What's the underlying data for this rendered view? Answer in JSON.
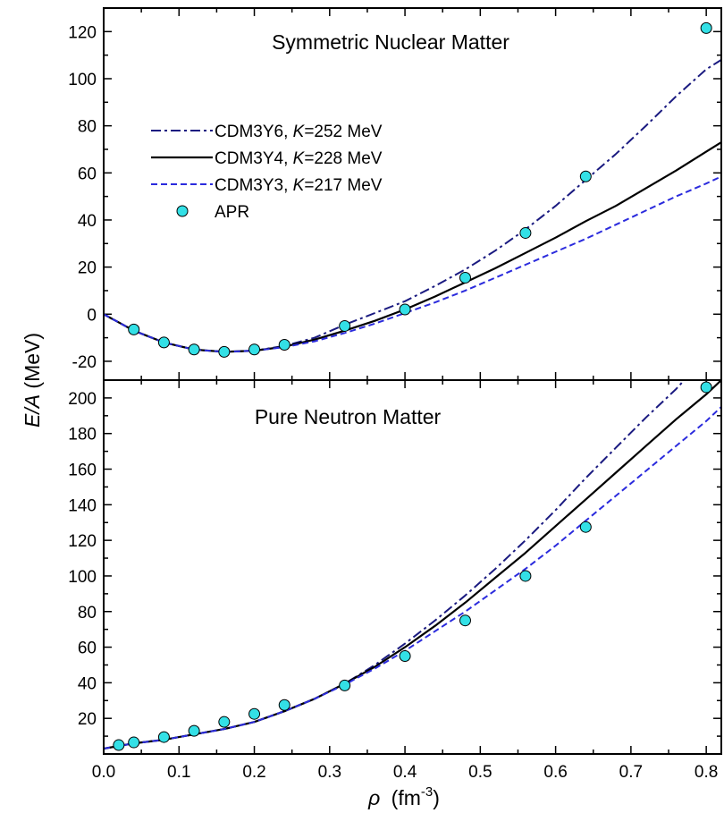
{
  "chart_data": [
    {
      "type": "line",
      "title": "Symmetric Nuclear Matter",
      "xlabel_symbol": "ρ",
      "xlabel_unit": "(fm",
      "xlabel_exp": "-3",
      "xlabel_close": ")",
      "ylabel_italic": "E/A",
      "ylabel_unit": " (MeV)",
      "xlim": [
        0,
        0.82
      ],
      "ylim": [
        -28,
        130
      ],
      "x_ticks": [
        "0.0",
        "0.1",
        "0.2",
        "0.3",
        "0.4",
        "0.5",
        "0.6",
        "0.7",
        "0.8"
      ],
      "y_ticks": [
        "-20",
        "0",
        "20",
        "40",
        "60",
        "80",
        "100",
        "120"
      ],
      "legend_placement": "upper-left",
      "series": [
        {
          "name": "CDM3Y6, ",
          "name_italic": "K",
          "name_rest": "=252 MeV",
          "style": "dashdot",
          "color": "#1a1a80",
          "x": [
            0,
            0.04,
            0.08,
            0.12,
            0.16,
            0.2,
            0.24,
            0.28,
            0.32,
            0.36,
            0.4,
            0.44,
            0.48,
            0.52,
            0.56,
            0.6,
            0.64,
            0.68,
            0.72,
            0.76,
            0.8,
            0.82
          ],
          "y": [
            0,
            -7,
            -12,
            -15,
            -16,
            -15.5,
            -13.5,
            -10,
            -4.5,
            0.5,
            5.5,
            12,
            19,
            27,
            36,
            46,
            57,
            68,
            80,
            92.5,
            104,
            108
          ]
        },
        {
          "name": "CDM3Y4, ",
          "name_italic": "K",
          "name_rest": "=228 MeV",
          "style": "solid",
          "color": "#000000",
          "x": [
            0,
            0.04,
            0.08,
            0.12,
            0.16,
            0.2,
            0.24,
            0.28,
            0.32,
            0.36,
            0.4,
            0.44,
            0.48,
            0.52,
            0.56,
            0.6,
            0.64,
            0.68,
            0.72,
            0.76,
            0.8,
            0.82
          ],
          "y": [
            0,
            -7,
            -12,
            -15,
            -16,
            -15.5,
            -13.8,
            -10.8,
            -7,
            -2.8,
            2,
            7.5,
            13.5,
            19.5,
            26,
            32.5,
            39.5,
            46,
            53.5,
            61,
            69,
            73
          ]
        },
        {
          "name": "CDM3Y3, ",
          "name_italic": "K",
          "name_rest": "=217 MeV",
          "style": "dashed",
          "color": "#2b2bdd",
          "x": [
            0,
            0.04,
            0.08,
            0.12,
            0.16,
            0.2,
            0.24,
            0.28,
            0.32,
            0.36,
            0.4,
            0.44,
            0.48,
            0.52,
            0.56,
            0.6,
            0.64,
            0.68,
            0.72,
            0.76,
            0.8,
            0.82
          ],
          "y": [
            0,
            -7,
            -12,
            -15,
            -16,
            -15.5,
            -14,
            -11.5,
            -8,
            -4,
            0.5,
            5,
            10,
            15.5,
            21,
            26.5,
            32,
            38,
            44,
            50,
            55.5,
            58.5
          ]
        },
        {
          "name": "APR",
          "style": "markers",
          "color": "#33e0e6",
          "x": [
            0.04,
            0.08,
            0.12,
            0.16,
            0.2,
            0.24,
            0.32,
            0.4,
            0.48,
            0.56,
            0.64,
            0.8
          ],
          "y": [
            -6.5,
            -12,
            -15,
            -16,
            -15,
            -13,
            -5,
            2,
            15.5,
            34.5,
            58.5,
            121.5
          ]
        }
      ]
    },
    {
      "type": "line",
      "title": "Pure Neutron Matter",
      "xlim": [
        0,
        0.82
      ],
      "ylim": [
        0,
        210
      ],
      "x_ticks": [
        "0.0",
        "0.1",
        "0.2",
        "0.3",
        "0.4",
        "0.5",
        "0.6",
        "0.7",
        "0.8"
      ],
      "y_ticks": [
        "20",
        "40",
        "60",
        "80",
        "100",
        "120",
        "140",
        "160",
        "180",
        "200"
      ],
      "series": [
        {
          "style": "dashdot",
          "color": "#1a1a80",
          "x": [
            0,
            0.04,
            0.08,
            0.12,
            0.16,
            0.2,
            0.24,
            0.28,
            0.32,
            0.36,
            0.4,
            0.44,
            0.48,
            0.52,
            0.56,
            0.6,
            0.64,
            0.68,
            0.72,
            0.76,
            0.775
          ],
          "y": [
            3,
            6,
            8,
            11,
            14,
            18,
            24,
            31,
            39.5,
            50,
            62,
            75,
            89,
            104,
            120,
            137,
            155,
            172,
            189,
            205,
            212
          ]
        },
        {
          "style": "solid",
          "color": "#000000",
          "x": [
            0,
            0.04,
            0.08,
            0.12,
            0.16,
            0.2,
            0.24,
            0.28,
            0.32,
            0.36,
            0.4,
            0.44,
            0.48,
            0.52,
            0.56,
            0.6,
            0.64,
            0.68,
            0.72,
            0.76,
            0.8,
            0.82
          ],
          "y": [
            3,
            6,
            8,
            11,
            14,
            18,
            24,
            31,
            39.5,
            49,
            60,
            72,
            85,
            99,
            113,
            128,
            143,
            158,
            173,
            188,
            202,
            210
          ]
        },
        {
          "style": "dashed",
          "color": "#2b2bdd",
          "x": [
            0,
            0.04,
            0.08,
            0.12,
            0.16,
            0.2,
            0.24,
            0.28,
            0.32,
            0.36,
            0.4,
            0.44,
            0.48,
            0.52,
            0.56,
            0.6,
            0.64,
            0.68,
            0.72,
            0.76,
            0.8,
            0.82
          ],
          "y": [
            3,
            6,
            8,
            11,
            14,
            18,
            24,
            31,
            39,
            48,
            58,
            69,
            80,
            92,
            104,
            117,
            131,
            145,
            159,
            173,
            187,
            195
          ]
        },
        {
          "style": "markers",
          "color": "#33e0e6",
          "x": [
            0.02,
            0.04,
            0.08,
            0.12,
            0.16,
            0.2,
            0.24,
            0.32,
            0.4,
            0.48,
            0.56,
            0.64,
            0.8
          ],
          "y": [
            5,
            6.5,
            9.5,
            13,
            18,
            22.5,
            27.5,
            38.5,
            55,
            75,
            100,
            127.5,
            206
          ]
        }
      ]
    }
  ]
}
